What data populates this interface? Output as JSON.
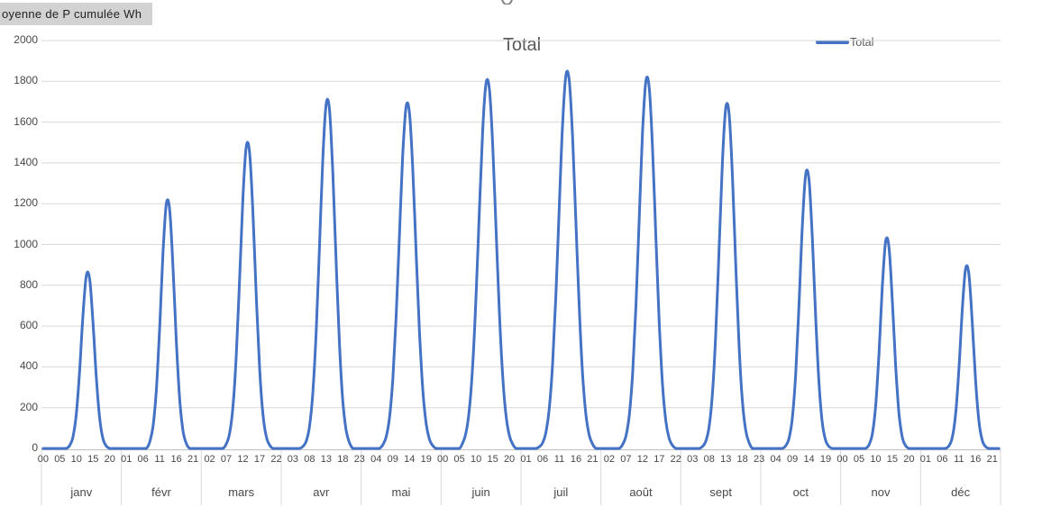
{
  "field_button": {
    "label": "oyenne de P cumulée Wh"
  },
  "chart": {
    "title": "Total",
    "legend_label": "Total"
  },
  "colors": {
    "accent_line": "#4472C4",
    "gridline": "#D9D9D9",
    "axis_line": "#BFBFBF",
    "text_gray": "#595959",
    "field_button_bg": "#D2D2D2"
  },
  "chart_data": {
    "type": "line",
    "title": "Total",
    "legend": [
      "Total"
    ],
    "legend_position": "top-right",
    "grid": true,
    "ylim": [
      0,
      2000
    ],
    "y_ticks": [
      0,
      200,
      400,
      600,
      800,
      1000,
      1200,
      1400,
      1600,
      1800,
      2000
    ],
    "y_unit": "Wh",
    "months": [
      "janv",
      "févr",
      "mars",
      "avr",
      "mai",
      "juin",
      "juil",
      "août",
      "sept",
      "oct",
      "nov",
      "déc"
    ],
    "x_structure": "24 hourly points (00-23) per month, 288 points total, tick label every 5 hours",
    "x_tick_labels": [
      "00",
      "05",
      "10",
      "15",
      "20",
      "01",
      "06",
      "11",
      "16",
      "21",
      "02",
      "07",
      "12",
      "17",
      "22",
      "03",
      "08",
      "13",
      "18",
      "23",
      "04",
      "09",
      "14",
      "19",
      "00",
      "05",
      "10",
      "15",
      "20",
      "01",
      "06",
      "11",
      "16",
      "21",
      "02",
      "07",
      "12",
      "17",
      "22",
      "03",
      "08",
      "13",
      "18",
      "23",
      "04",
      "09",
      "14",
      "19",
      "00",
      "05",
      "10",
      "15",
      "20",
      "01",
      "06",
      "11",
      "16",
      "21"
    ],
    "series": [
      {
        "name": "Total",
        "monthly_peak_values": [
          850,
          1200,
          1480,
          1690,
          1675,
          1790,
          1830,
          1800,
          1670,
          1345,
          1015,
          880
        ]
      }
    ],
    "profile": {
      "shape": "gaussian-daily-bell",
      "center_hour": 13.4,
      "sigma_hours": [
        1.9,
        2.0,
        2.2,
        2.3,
        2.45,
        2.55,
        2.55,
        2.45,
        2.3,
        2.1,
        1.9,
        1.85
      ],
      "night_value": 0
    }
  }
}
